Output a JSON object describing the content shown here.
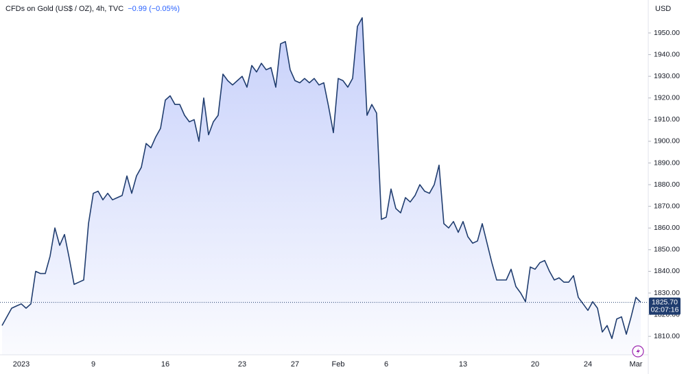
{
  "chart_data": {
    "type": "area",
    "title": "CFDs on Gold (US$ / OZ), 4h, TVC",
    "change": "−0.99 (−0.05%)",
    "y_axis_label": "USD",
    "color": "#1f3c6e",
    "categories": [
      null,
      null,
      null,
      null,
      "2023",
      null,
      null,
      null,
      null,
      null,
      null,
      null,
      null,
      null,
      null,
      null,
      null,
      null,
      null,
      "9",
      null,
      null,
      null,
      null,
      null,
      null,
      null,
      null,
      null,
      null,
      null,
      null,
      null,
      null,
      "16",
      null,
      null,
      null,
      null,
      null,
      null,
      null,
      null,
      null,
      null,
      null,
      null,
      null,
      null,
      null,
      "23",
      null,
      null,
      null,
      null,
      null,
      null,
      null,
      null,
      null,
      null,
      "27",
      null,
      null,
      null,
      null,
      null,
      null,
      null,
      null,
      "Feb",
      null,
      null,
      null,
      null,
      null,
      null,
      null,
      null,
      null,
      "6",
      null,
      null,
      null,
      null,
      null,
      null,
      null,
      null,
      null,
      null,
      null,
      null,
      null,
      null,
      null,
      "13",
      null,
      null,
      null,
      null,
      null,
      null,
      null,
      null,
      null,
      null,
      null,
      null,
      null,
      null,
      "20",
      null,
      null,
      null,
      null,
      null,
      null,
      null,
      null,
      null,
      null,
      "24",
      null,
      null,
      null,
      null,
      null,
      null,
      null,
      null,
      null,
      "Mar",
      null
    ],
    "values": [
      1815,
      1819,
      1823,
      1824,
      1825,
      1823,
      1825,
      1840,
      1839,
      1839,
      1847,
      1860,
      1852,
      1857,
      1846,
      1834,
      1835,
      1836,
      1862,
      1876,
      1877,
      1873,
      1876,
      1873,
      1874,
      1875,
      1884,
      1876,
      1884,
      1888,
      1899,
      1897,
      1902,
      1906,
      1919,
      1921,
      1917,
      1917,
      1912,
      1909,
      1910,
      1900,
      1920,
      1903,
      1909,
      1912,
      1931,
      1928,
      1926,
      1928,
      1930,
      1925,
      1935,
      1932,
      1936,
      1933,
      1934,
      1925,
      1945,
      1946,
      1933,
      1928,
      1927,
      1929,
      1927,
      1929,
      1926,
      1927,
      1916,
      1904,
      1929,
      1928,
      1925,
      1929,
      1953,
      1957,
      1912,
      1917,
      1913,
      1864,
      1865,
      1878,
      1869,
      1867,
      1874,
      1872,
      1875,
      1880,
      1877,
      1876,
      1880,
      1889,
      1862,
      1860,
      1863,
      1858,
      1863,
      1856,
      1853,
      1854,
      1862,
      1853,
      1844,
      1836,
      1836,
      1836,
      1841,
      1833,
      1830,
      1826,
      1842,
      1841,
      1844,
      1845,
      1840,
      1836,
      1837,
      1835,
      1835,
      1838,
      1828,
      1825,
      1822,
      1826,
      1823,
      1812,
      1815,
      1809,
      1818,
      1819,
      1811,
      1819,
      1828,
      1825.7
    ],
    "ylim": [
      1801.5,
      1965.2
    ],
    "yticks": [
      {
        "value": 1810,
        "label": "1810.00"
      },
      {
        "value": 1820,
        "label": "1820.00"
      },
      {
        "value": 1830,
        "label": "1830.00"
      },
      {
        "value": 1840,
        "label": "1840.00"
      },
      {
        "value": 1850,
        "label": "1850.00"
      },
      {
        "value": 1860,
        "label": "1860.00"
      },
      {
        "value": 1870,
        "label": "1870.00"
      },
      {
        "value": 1880,
        "label": "1880.00"
      },
      {
        "value": 1890,
        "label": "1890.00"
      },
      {
        "value": 1900,
        "label": "1900.00"
      },
      {
        "value": 1910,
        "label": "1910.00"
      },
      {
        "value": 1920,
        "label": "1920.00"
      },
      {
        "value": 1930,
        "label": "1930.00"
      },
      {
        "value": 1940,
        "label": "1940.00"
      },
      {
        "value": 1950,
        "label": "1950.00"
      }
    ],
    "last_price": {
      "value": 1825.7,
      "label": "1825.70"
    },
    "countdown": "02:07:16"
  }
}
